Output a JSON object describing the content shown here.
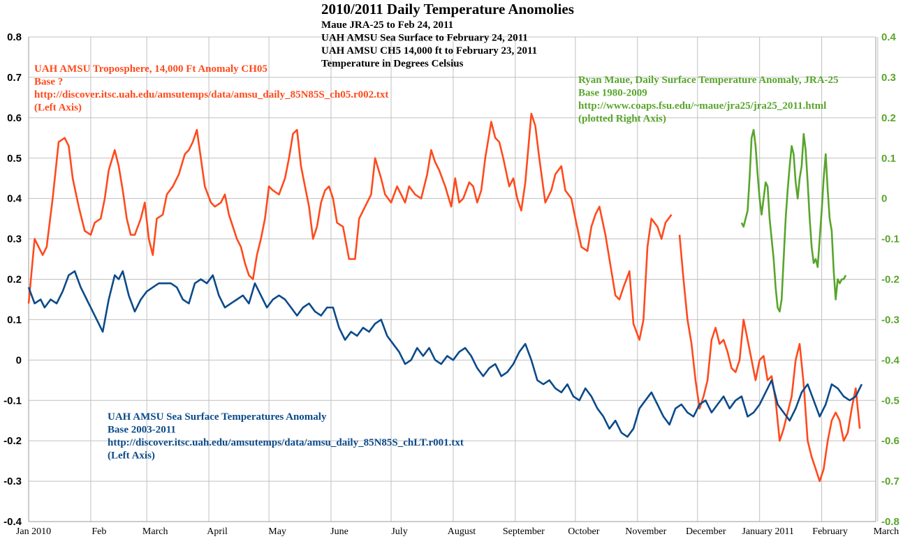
{
  "chart_data": {
    "type": "line",
    "title": "2010/2011 Daily Temperature Anomolies",
    "subtitle_lines": [
      "Maue JRA-25 to Feb 24, 2011",
      "UAH AMSU Sea Surface to February 24, 2011",
      "UAH AMSU CH5 14,000 ft to February 23, 2011",
      "Temperature in Degrees Celsius"
    ],
    "x_tick_labels": [
      "Jan 2010",
      "Feb",
      "March",
      "April",
      "May",
      "June",
      "July",
      "August",
      "September",
      "October",
      "November",
      "December",
      "January 2011",
      "February",
      "March"
    ],
    "y_left": {
      "min": -0.4,
      "max": 0.8,
      "ticks": [
        "0.8",
        "0.7",
        "0.6",
        "0.5",
        "0.4",
        "0.3",
        "0.2",
        "0.1",
        "0",
        "-0.1",
        "-0.2",
        "-0.3",
        "-0.4"
      ]
    },
    "y_right": {
      "min": -0.8,
      "max": 0.4,
      "ticks": [
        "0.4",
        "0.3",
        "0.2",
        "0.1",
        "0",
        "-0.1",
        "-0.2",
        "-0.3",
        "-0.4",
        "-0.5",
        "-0.6",
        "-0.7",
        "-0.8"
      ]
    },
    "grid": true,
    "colors": {
      "troposphere": "#ff4a1c",
      "sea_surface": "#0b4a8a",
      "surface_jra25": "#58a52b",
      "grid": "#c0c0c0",
      "axis": "#999999"
    },
    "annotations": {
      "troposphere": [
        "UAH AMSU Troposphere, 14,000 Ft Anomaly CH05",
        "Base ?",
        "http://discover.itsc.uah.edu/amsutemps/data/amsu_daily_85N85S_ch05.r002.txt",
        "(Left Axis)"
      ],
      "sea_surface": [
        "UAH AMSU Sea Surface Temperatures Anomaly",
        "Base 2003-2011",
        "http://discover.itsc.uah.edu/amsutemps/data/amsu_daily_85N85S_chLT.r001.txt",
        "(Left Axis)"
      ],
      "surface_jra25": [
        "Ryan Maue, Daily Surface Temperature Anomaly, JRA-25",
        "Base 1980-2009",
        "http://www.coaps.fsu.edu/~maue/jra25/jra25_2011.html",
        "(plotted Right Axis)"
      ]
    },
    "series": [
      {
        "key": "troposphere",
        "axis": "left",
        "x": [
          0,
          3,
          5,
          7,
          9,
          12,
          15,
          18,
          20,
          22,
          25,
          28,
          31,
          33,
          36,
          38,
          40,
          43,
          45,
          47,
          49,
          51,
          53,
          56,
          58,
          60,
          62,
          64,
          67,
          69,
          72,
          75,
          78,
          80,
          82,
          84,
          86,
          88,
          91,
          93,
          96,
          98,
          100,
          102,
          104,
          106,
          108,
          110,
          112,
          114,
          116,
          118,
          120,
          122,
          125,
          128,
          130,
          132,
          134,
          136,
          138,
          140,
          142,
          144,
          146,
          148,
          150,
          152,
          154,
          157,
          160,
          163,
          165,
          168,
          171,
          173,
          176,
          178,
          181,
          184,
          186,
          188,
          190,
          193,
          196,
          199,
          201,
          203,
          205,
          208,
          211,
          213,
          215,
          217,
          220,
          222,
          224,
          226,
          228,
          231,
          233,
          235,
          237,
          240,
          242,
          244,
          246,
          248,
          251,
          253,
          255,
          258,
          261,
          263,
          266,
          268,
          271,
          273,
          276,
          279,
          281,
          283,
          285,
          288,
          291,
          293,
          295,
          297,
          300,
          302,
          305,
          307,
          309,
          311,
          314,
          316,
          318,
          321
        ],
        "values": [
          0.14,
          0.3,
          0.28,
          0.26,
          0.28,
          0.4,
          0.54,
          0.55,
          0.53,
          0.45,
          0.38,
          0.32,
          0.31,
          0.34,
          0.35,
          0.4,
          0.47,
          0.52,
          0.48,
          0.42,
          0.35,
          0.31,
          0.31,
          0.35,
          0.39,
          0.3,
          0.26,
          0.35,
          0.36,
          0.41,
          0.43,
          0.46,
          0.51,
          0.52,
          0.54,
          0.57,
          0.5,
          0.43,
          0.39,
          0.38,
          0.39,
          0.41,
          0.36,
          0.33,
          0.3,
          0.28,
          0.24,
          0.21,
          0.2,
          0.26,
          0.3,
          0.35,
          0.43,
          0.42,
          0.41,
          0.45,
          0.5,
          0.56,
          0.57,
          0.48,
          0.43,
          0.38,
          0.3,
          0.33,
          0.39,
          0.42,
          0.43,
          0.4,
          0.34,
          0.33,
          0.25,
          0.25,
          0.35,
          0.38,
          0.41,
          0.5,
          0.45,
          0.41,
          0.39,
          0.43,
          0.41,
          0.39,
          0.43,
          0.41,
          0.4,
          0.46,
          0.52,
          0.49,
          0.47,
          0.43,
          0.38,
          0.45,
          0.39,
          0.4,
          0.44,
          0.43,
          0.39,
          0.42,
          0.5,
          0.59,
          0.55,
          0.54,
          0.5,
          0.43,
          0.45,
          0.4,
          0.37,
          0.44,
          0.61,
          0.58,
          0.5,
          0.39,
          0.42,
          0.46,
          0.48,
          0.42,
          0.4,
          0.35,
          0.28,
          0.27,
          0.33,
          0.36,
          0.38,
          0.31,
          0.22,
          0.16,
          0.15,
          0.18,
          0.22,
          0.09,
          0.05,
          0.1,
          0.28,
          0.35,
          0.33,
          0.3,
          0.34,
          0.36
        ]
      },
      {
        "key": "troposphere_2",
        "axis": "left",
        "x": [
          325,
          327,
          329,
          331,
          333,
          335,
          337,
          339,
          341,
          343,
          345,
          347,
          349,
          351,
          353,
          355,
          357,
          359,
          361,
          363,
          365,
          367,
          369,
          371,
          373,
          375,
          377,
          379,
          381,
          383,
          385,
          387,
          389,
          391,
          393,
          395,
          397,
          399,
          401,
          403,
          405,
          407,
          409,
          411,
          413,
          415
        ],
        "values": [
          0.31,
          0.2,
          0.1,
          0.04,
          -0.05,
          -0.12,
          -0.09,
          -0.05,
          0.05,
          0.08,
          0.04,
          0.05,
          0.02,
          -0.02,
          -0.03,
          0.0,
          0.1,
          0.05,
          0.0,
          -0.05,
          0.0,
          0.01,
          -0.05,
          -0.04,
          -0.1,
          -0.2,
          -0.17,
          -0.13,
          -0.09,
          0.0,
          0.04,
          -0.06,
          -0.2,
          -0.24,
          -0.27,
          -0.3,
          -0.27,
          -0.2,
          -0.15,
          -0.13,
          -0.15,
          -0.2,
          -0.18,
          -0.12,
          -0.07,
          -0.17
        ]
      },
      {
        "key": "sea_surface",
        "axis": "left",
        "x": [
          0,
          3,
          6,
          8,
          11,
          14,
          17,
          20,
          23,
          26,
          29,
          32,
          35,
          37,
          40,
          43,
          45,
          47,
          50,
          53,
          56,
          59,
          62,
          65,
          68,
          71,
          74,
          77,
          80,
          83,
          86,
          89,
          92,
          95,
          98,
          101,
          104,
          107,
          110,
          113,
          116,
          119,
          122,
          125,
          128,
          131,
          134,
          137,
          140,
          143,
          146,
          149,
          152,
          155,
          158,
          161,
          164,
          167,
          170,
          173,
          176,
          179,
          182,
          185,
          188,
          191,
          194,
          197,
          200,
          203,
          206,
          209,
          212,
          215,
          218,
          221,
          224,
          227,
          230,
          233,
          236,
          239,
          242,
          245,
          248,
          251,
          254,
          257,
          260,
          263,
          266,
          269,
          272,
          275,
          278,
          281,
          284,
          287,
          290,
          293,
          296,
          299,
          302,
          305,
          308,
          311,
          314,
          317,
          320,
          323,
          326,
          329,
          332,
          335,
          338,
          341,
          344,
          347,
          350,
          353,
          356,
          359,
          362,
          365,
          368,
          371,
          374,
          377,
          380,
          383,
          386,
          389,
          392,
          395,
          398,
          401,
          404,
          407,
          410,
          413,
          416
        ],
        "values": [
          0.18,
          0.14,
          0.15,
          0.13,
          0.15,
          0.14,
          0.17,
          0.21,
          0.22,
          0.18,
          0.15,
          0.12,
          0.09,
          0.07,
          0.15,
          0.21,
          0.2,
          0.22,
          0.16,
          0.12,
          0.15,
          0.17,
          0.18,
          0.19,
          0.19,
          0.19,
          0.18,
          0.15,
          0.14,
          0.19,
          0.2,
          0.19,
          0.21,
          0.16,
          0.13,
          0.14,
          0.15,
          0.16,
          0.14,
          0.19,
          0.16,
          0.13,
          0.15,
          0.16,
          0.15,
          0.13,
          0.11,
          0.13,
          0.14,
          0.12,
          0.11,
          0.13,
          0.13,
          0.08,
          0.05,
          0.07,
          0.06,
          0.08,
          0.07,
          0.09,
          0.1,
          0.06,
          0.04,
          0.02,
          -0.01,
          0.0,
          0.03,
          0.01,
          0.03,
          0.0,
          -0.01,
          0.01,
          0.0,
          0.02,
          0.03,
          0.01,
          -0.02,
          -0.04,
          -0.02,
          -0.01,
          -0.04,
          -0.03,
          -0.01,
          0.02,
          0.04,
          0.0,
          -0.05,
          -0.06,
          -0.05,
          -0.07,
          -0.08,
          -0.06,
          -0.09,
          -0.1,
          -0.07,
          -0.09,
          -0.12,
          -0.14,
          -0.17,
          -0.15,
          -0.18,
          -0.19,
          -0.17,
          -0.12,
          -0.1,
          -0.08,
          -0.11,
          -0.14,
          -0.16,
          -0.12,
          -0.11,
          -0.13,
          -0.14,
          -0.11,
          -0.1,
          -0.13,
          -0.11,
          -0.09,
          -0.12,
          -0.1,
          -0.09,
          -0.14,
          -0.13,
          -0.11,
          -0.08,
          -0.05,
          -0.11,
          -0.13,
          -0.15,
          -0.12,
          -0.08,
          -0.06,
          -0.1,
          -0.14,
          -0.11,
          -0.06,
          -0.07,
          -0.09,
          -0.1,
          -0.09,
          -0.06
        ]
      },
      {
        "key": "surface_jra25",
        "axis": "right",
        "x": [
          356,
          357,
          358,
          359,
          360,
          361,
          362,
          363,
          364,
          365,
          366,
          367,
          368,
          369,
          370,
          371,
          372,
          373,
          374,
          375,
          376,
          377,
          378,
          379,
          380,
          381,
          382,
          383,
          384,
          385,
          386,
          387,
          388,
          389,
          390,
          391,
          392,
          393,
          394,
          395,
          396,
          397,
          398,
          399,
          400,
          401,
          402,
          403,
          404,
          405,
          406,
          407,
          408
        ],
        "values": [
          -0.06,
          -0.07,
          -0.05,
          -0.03,
          0.05,
          0.15,
          0.17,
          0.13,
          0.06,
          0.0,
          -0.04,
          0.0,
          0.04,
          0.03,
          -0.05,
          -0.1,
          -0.15,
          -0.22,
          -0.27,
          -0.28,
          -0.25,
          -0.15,
          -0.05,
          0.02,
          0.08,
          0.13,
          0.11,
          0.04,
          0.0,
          0.05,
          0.08,
          0.16,
          0.12,
          0.04,
          -0.05,
          -0.12,
          -0.16,
          -0.15,
          -0.17,
          -0.1,
          -0.03,
          0.05,
          0.11,
          0.02,
          -0.05,
          -0.08,
          -0.18,
          -0.25,
          -0.2,
          -0.21,
          -0.2,
          -0.2,
          -0.19
        ]
      }
    ]
  }
}
